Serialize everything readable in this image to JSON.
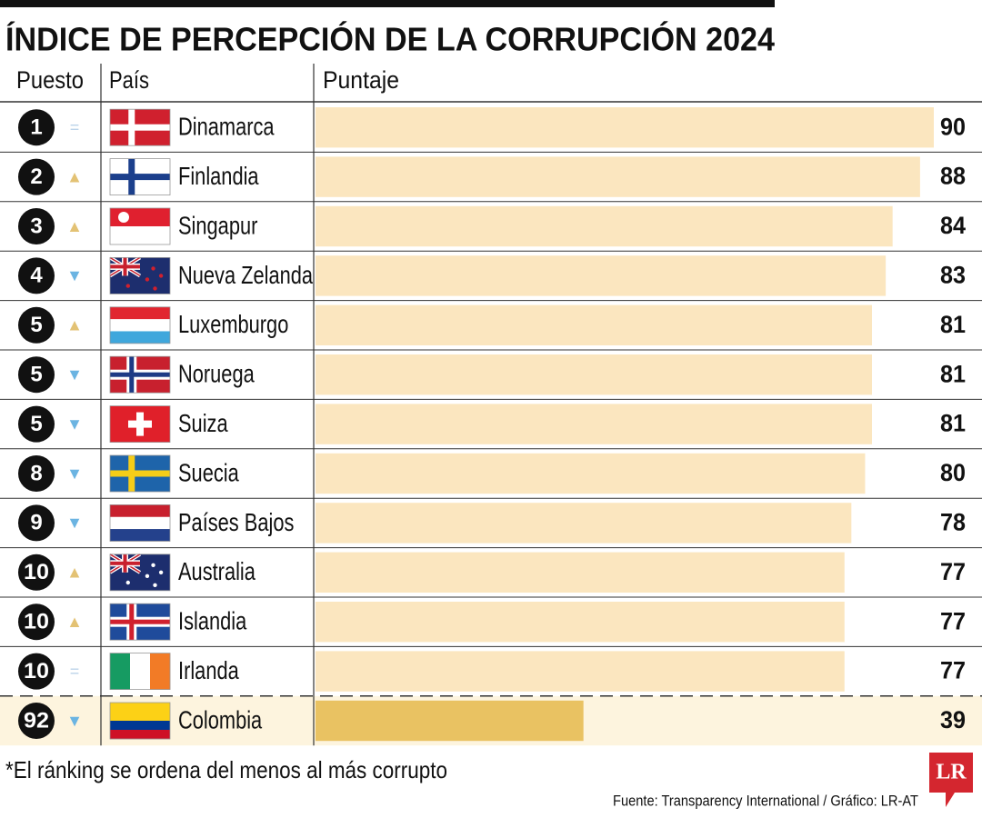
{
  "chart_data": {
    "type": "bar",
    "title": "ÍNDICE DE PERCEPCIÓN DE LA CORRUPCIÓN 2024",
    "columns": [
      "Puesto",
      "País",
      "Puntaje"
    ],
    "ranks": [
      1,
      2,
      3,
      4,
      5,
      5,
      5,
      8,
      9,
      10,
      10,
      10,
      92
    ],
    "trend": [
      "=",
      "▲",
      "▲",
      "▼",
      "▲",
      "▼",
      "▼",
      "▼",
      "▼",
      "▲",
      "▲",
      "=",
      "▼"
    ],
    "trend_colors": {
      "=": "#bcd4ea",
      "▲": "#e3c274",
      "▼": "#6bb4e2"
    },
    "categories": [
      "Dinamarca",
      "Finlandia",
      "Singapur",
      "Nueva Zelanda",
      "Luxemburgo",
      "Noruega",
      "Suiza",
      "Suecia",
      "Países Bajos",
      "Australia",
      "Islandia",
      "Irlanda",
      "Colombia"
    ],
    "values": [
      90,
      88,
      84,
      83,
      81,
      81,
      81,
      80,
      78,
      77,
      77,
      77,
      39
    ],
    "color": "#fbe6bf",
    "highlight_category": "Colombia",
    "highlight_color": "#e9c262",
    "highlight_background": "#fdf4de",
    "footnote": "*El ránking se ordena del menos al más corrupto",
    "source": "Fuente: Transparency International / Gráfico: LR-AT",
    "logo": "LR"
  }
}
